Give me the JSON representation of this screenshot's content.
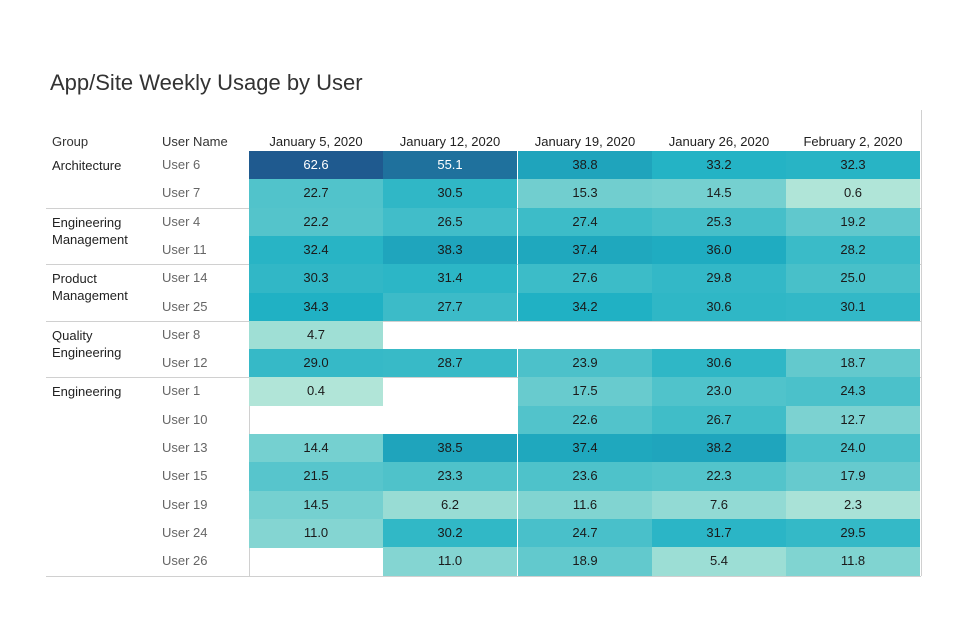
{
  "chart_data": {
    "type": "heatmap",
    "title": "App/Site Weekly Usage by User",
    "row_headers": [
      "Group",
      "User Name"
    ],
    "columns": [
      "January 5, 2020",
      "January 12, 2020",
      "January 19, 2020",
      "January 26, 2020",
      "February 2, 2020"
    ],
    "groups": [
      {
        "name": "Architecture",
        "rows": [
          {
            "user": "User 6",
            "values": [
              "62.6",
              "55.1",
              "38.8",
              "33.2",
              "32.3"
            ]
          },
          {
            "user": "User 7",
            "values": [
              "22.7",
              "30.5",
              "15.3",
              "14.5",
              "0.6"
            ]
          }
        ]
      },
      {
        "name": "Engineering Management",
        "rows": [
          {
            "user": "User 4",
            "values": [
              "22.2",
              "26.5",
              "27.4",
              "25.3",
              "19.2"
            ]
          },
          {
            "user": "User 11",
            "values": [
              "32.4",
              "38.3",
              "37.4",
              "36.0",
              "28.2"
            ]
          }
        ]
      },
      {
        "name": "Product Management",
        "rows": [
          {
            "user": "User 14",
            "values": [
              "30.3",
              "31.4",
              "27.6",
              "29.8",
              "25.0"
            ]
          },
          {
            "user": "User 25",
            "values": [
              "34.3",
              "27.7",
              "34.2",
              "30.6",
              "30.1"
            ]
          }
        ]
      },
      {
        "name": "Quality Engineering",
        "rows": [
          {
            "user": "User 8",
            "values": [
              "4.7",
              null,
              null,
              null,
              null
            ]
          },
          {
            "user": "User 12",
            "values": [
              "29.0",
              "28.7",
              "23.9",
              "30.6",
              "18.7"
            ]
          }
        ]
      },
      {
        "name": "Engineering",
        "rows": [
          {
            "user": "User 1",
            "values": [
              "0.4",
              null,
              "17.5",
              "23.0",
              "24.3"
            ]
          },
          {
            "user": "User 10",
            "values": [
              null,
              null,
              "22.6",
              "26.7",
              "12.7"
            ]
          },
          {
            "user": "User 13",
            "values": [
              "14.4",
              "38.5",
              "37.4",
              "38.2",
              "24.0"
            ]
          },
          {
            "user": "User 15",
            "values": [
              "21.5",
              "23.3",
              "23.6",
              "22.3",
              "17.9"
            ]
          },
          {
            "user": "User 19",
            "values": [
              "14.5",
              "6.2",
              "11.6",
              "7.6",
              "2.3"
            ]
          },
          {
            "user": "User 24",
            "values": [
              "11.0",
              "30.2",
              "24.7",
              "31.7",
              "29.5"
            ]
          },
          {
            "user": "User 26",
            "values": [
              null,
              "11.0",
              "18.9",
              "5.4",
              "11.8"
            ]
          }
        ]
      }
    ],
    "color_scale": {
      "low": "#b3e6d8",
      "mid": "#1fb1c4",
      "high": "#1f5a8f",
      "domain": [
        0,
        62.6
      ]
    }
  }
}
